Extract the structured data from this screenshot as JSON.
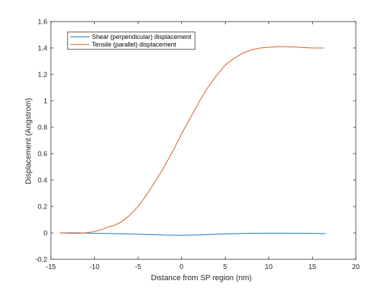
{
  "chart_data": {
    "type": "line",
    "title": "",
    "xlabel": "Distance from SP region (nm)",
    "ylabel": "Displacement (Angstrom)",
    "xlim": [
      -15,
      20
    ],
    "ylim": [
      -0.2,
      1.6
    ],
    "xticks": [
      -15,
      -10,
      -5,
      0,
      5,
      10,
      15,
      20
    ],
    "yticks": [
      -0.2,
      0,
      0.2,
      0.4,
      0.6,
      0.8,
      1,
      1.2,
      1.4,
      1.6
    ],
    "xtick_labels": [
      "-15",
      "-10",
      "-5",
      "0",
      "5",
      "10",
      "15",
      "20"
    ],
    "ytick_labels": [
      "-0.2",
      "0",
      "0.2",
      "0.4",
      "0.6",
      "0.8",
      "1",
      "1.2",
      "1.4",
      "1.6"
    ],
    "grid": false,
    "legend_position": "top-left",
    "series": [
      {
        "name": "Shear (perpendicular) displacement",
        "color": "#0072BD",
        "x": [
          -14,
          -12,
          -10,
          -8,
          -6,
          -4,
          -2,
          0,
          2,
          4,
          6,
          8,
          10,
          12,
          14,
          16.5
        ],
        "y": [
          0,
          0,
          -0.003,
          -0.005,
          -0.008,
          -0.012,
          -0.016,
          -0.017,
          -0.015,
          -0.01,
          -0.006,
          -0.003,
          -0.002,
          -0.002,
          -0.003,
          -0.005
        ]
      },
      {
        "name": "Tensile (parallel) displacement",
        "color": "#D95319",
        "x": [
          -14,
          -13,
          -12,
          -11,
          -10,
          -9,
          -8.2,
          -7.8,
          -7,
          -6,
          -5,
          -4,
          -3,
          -2,
          -1,
          0,
          1,
          2,
          3,
          4,
          5,
          6,
          7,
          8,
          9,
          10,
          11,
          12,
          13,
          14,
          15,
          16.3
        ],
        "y": [
          0,
          -0.002,
          -0.003,
          0,
          0.01,
          0.03,
          0.05,
          0.055,
          0.08,
          0.13,
          0.2,
          0.29,
          0.39,
          0.5,
          0.62,
          0.75,
          0.87,
          0.99,
          1.1,
          1.19,
          1.27,
          1.32,
          1.36,
          1.385,
          1.4,
          1.405,
          1.41,
          1.41,
          1.407,
          1.403,
          1.4,
          1.4
        ]
      }
    ]
  }
}
